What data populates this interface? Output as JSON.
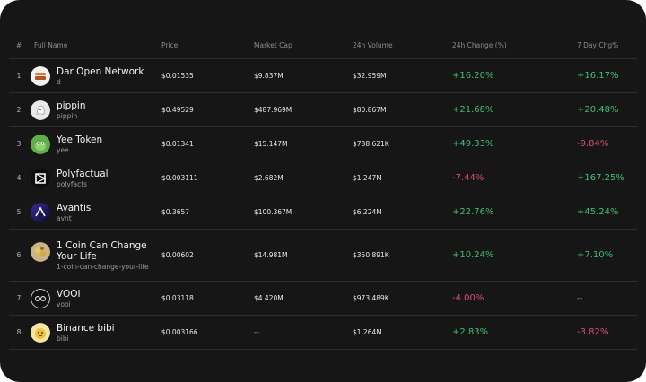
{
  "table": {
    "headers": {
      "rank": "#",
      "full_name": "Full Name",
      "price": "Price",
      "market_cap": "Market Cap",
      "volume_24h": "24h Volume",
      "change_24h": "24h Change (%)",
      "change_7d": "7 Day Chg%"
    },
    "rows": [
      {
        "rank": "1",
        "name": "Dar Open Network",
        "symbol": "d",
        "price": "$0.01535",
        "market_cap": "$9.837M",
        "volume": "$32.959M",
        "change_24h": "+16.20%",
        "change_7d": "+16.17%"
      },
      {
        "rank": "2",
        "name": "pippin",
        "symbol": "pippin",
        "price": "$0.49529",
        "market_cap": "$487.969M",
        "volume": "$80.867M",
        "change_24h": "+21.68%",
        "change_7d": "+20.48%"
      },
      {
        "rank": "3",
        "name": "Yee Token",
        "symbol": "yee",
        "price": "$0.01341",
        "market_cap": "$15.147M",
        "volume": "$788.621K",
        "change_24h": "+49.33%",
        "change_7d": "-9.84%"
      },
      {
        "rank": "4",
        "name": "Polyfactual",
        "symbol": "polyfacts",
        "price": "$0.003111",
        "market_cap": "$2.682M",
        "volume": "$1.247M",
        "change_24h": "-7.44%",
        "change_7d": "+167.25%"
      },
      {
        "rank": "5",
        "name": "Avantis",
        "symbol": "avnt",
        "price": "$0.3657",
        "market_cap": "$100.367M",
        "volume": "$6.224M",
        "change_24h": "+22.76%",
        "change_7d": "+45.24%"
      },
      {
        "rank": "6",
        "name": "1 Coin Can Change Your Life",
        "symbol": "1-coin-can-change-your-life",
        "price": "$0.00602",
        "market_cap": "$14.981M",
        "volume": "$350.891K",
        "change_24h": "+10.24%",
        "change_7d": "+7.10%"
      },
      {
        "rank": "7",
        "name": "VOOI",
        "symbol": "vooi",
        "price": "$0.03118",
        "market_cap": "$4.420M",
        "volume": "$973.489K",
        "change_24h": "-4.00%",
        "change_7d": "--"
      },
      {
        "rank": "8",
        "name": "Binance bibi",
        "symbol": "bibi",
        "price": "$0.003166",
        "market_cap": "--",
        "volume": "$1.264M",
        "change_24h": "+2.83%",
        "change_7d": "-3.82%"
      }
    ]
  },
  "colors": {
    "panel_bg": "#161616",
    "positive": "#3fbf73",
    "negative": "#d8506e",
    "muted": "#8c8c8c"
  },
  "icons": [
    "dar-open-network-logo-icon",
    "pippin-logo-icon",
    "yee-token-logo-icon",
    "polyfactual-logo-icon",
    "avantis-logo-icon",
    "1-coin-logo-icon",
    "vooi-logo-icon",
    "binance-bibi-logo-icon"
  ]
}
